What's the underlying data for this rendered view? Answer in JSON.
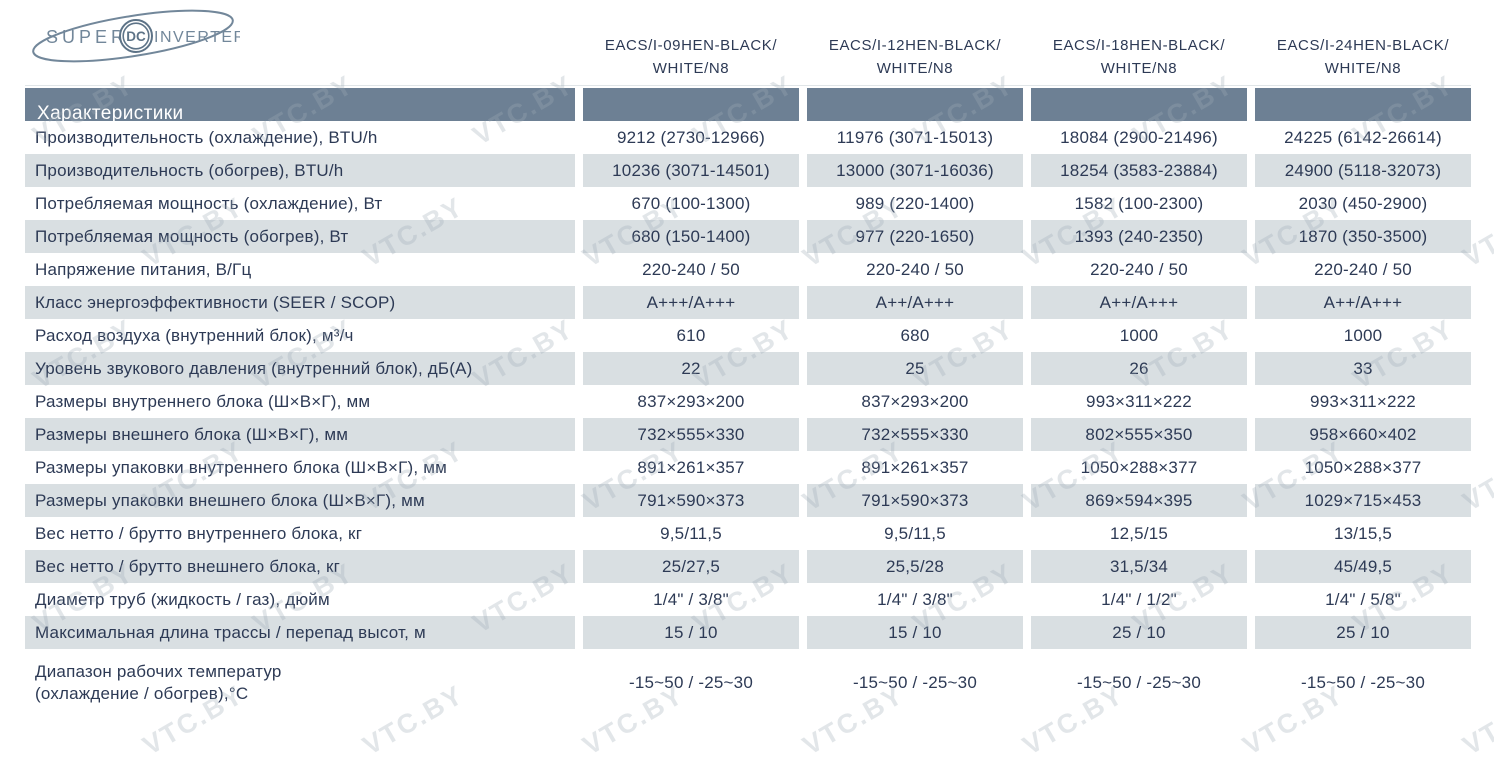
{
  "logo": {
    "super": "SUPER",
    "dc": "DC",
    "inverter": "INVERTER"
  },
  "watermark": {
    "text": "VTC.BY"
  },
  "colors": {
    "band": "#6d8094",
    "stripe": "#d9dfe2",
    "text": "#2d3a55",
    "band_text": "#ffffff",
    "logo": "#72879a"
  },
  "table": {
    "section_header": "Характеристики",
    "columns": [
      {
        "line1": "EACS/I-09HEN-BLACK/",
        "line2": "WHITE/N8"
      },
      {
        "line1": "EACS/I-12HEN-BLACK/",
        "line2": "WHITE/N8"
      },
      {
        "line1": "EACS/I-18HEN-BLACK/",
        "line2": "WHITE/N8"
      },
      {
        "line1": "EACS/I-24HEN-BLACK/",
        "line2": "WHITE/N8"
      }
    ],
    "rows": [
      {
        "label": "Производительность (охлаждение), BTU/h",
        "values": [
          "9212 (2730-12966)",
          "11976 (3071-15013)",
          "18084 (2900-21496)",
          "24225 (6142-26614)"
        ]
      },
      {
        "label": "Производительность (обогрев), BTU/h",
        "values": [
          "10236 (3071-14501)",
          "13000 (3071-16036)",
          "18254 (3583-23884)",
          "24900 (5118-32073)"
        ]
      },
      {
        "label": "Потребляемая мощность (охлаждение), Вт",
        "values": [
          "670 (100-1300)",
          "989 (220-1400)",
          "1582 (100-2300)",
          "2030 (450-2900)"
        ]
      },
      {
        "label": "Потребляемая мощность (обогрев), Вт",
        "values": [
          "680 (150-1400)",
          "977 (220-1650)",
          "1393 (240-2350)",
          "1870 (350-3500)"
        ]
      },
      {
        "label": "Напряжение питания, В/Гц",
        "values": [
          "220-240 / 50",
          "220-240 / 50",
          "220-240 / 50",
          "220-240 / 50"
        ]
      },
      {
        "label": "Класс энергоэффективности (SEER / SCOP)",
        "values": [
          "A+++/A+++",
          "A++/A+++",
          "A++/A+++",
          "A++/A+++"
        ]
      },
      {
        "label": "Расход воздуха (внутренний блок), м³/ч",
        "values": [
          "610",
          "680",
          "1000",
          "1000"
        ]
      },
      {
        "label": "Уровень звукового давления (внутренний блок), дБ(А)",
        "values": [
          "22",
          "25",
          "26",
          "33"
        ]
      },
      {
        "label": "Размеры внутреннего блока (Ш×В×Г), мм",
        "values": [
          "837×293×200",
          "837×293×200",
          "993×311×222",
          "993×311×222"
        ]
      },
      {
        "label": "Размеры внешнего блока (Ш×В×Г), мм",
        "values": [
          "732×555×330",
          "732×555×330",
          "802×555×350",
          "958×660×402"
        ]
      },
      {
        "label": "Размеры упаковки внутреннего блока (Ш×В×Г), мм",
        "values": [
          "891×261×357",
          "891×261×357",
          "1050×288×377",
          "1050×288×377"
        ]
      },
      {
        "label": "Размеры упаковки внешнего блока (Ш×В×Г), мм",
        "values": [
          "791×590×373",
          "791×590×373",
          "869×594×395",
          "1029×715×453"
        ]
      },
      {
        "label": "Вес нетто / брутто внутреннего блока, кг",
        "values": [
          "9,5/11,5",
          "9,5/11,5",
          "12,5/15",
          "13/15,5"
        ]
      },
      {
        "label": "Вес нетто / брутто внешнего блока, кг",
        "values": [
          "25/27,5",
          "25,5/28",
          "31,5/34",
          "45/49,5"
        ]
      },
      {
        "label": "Диаметр труб (жидкость / газ), дюйм",
        "values": [
          "1/4\" / 3/8\"",
          "1/4\" / 3/8\"",
          "1/4\" / 1/2\"",
          "1/4\" / 5/8\""
        ]
      },
      {
        "label": "Максимальная длина трассы / перепад высот, м",
        "values": [
          "15 / 10",
          "15 / 10",
          "25 / 10",
          "25 / 10"
        ]
      },
      {
        "label": "Диапазон рабочих температур\n(охлаждение / обогрев),°С",
        "values": [
          "-15~50 / -25~30",
          "-15~50 / -25~30",
          "-15~50 / -25~30",
          "-15~50 / -25~30"
        ],
        "tall": true
      }
    ]
  }
}
